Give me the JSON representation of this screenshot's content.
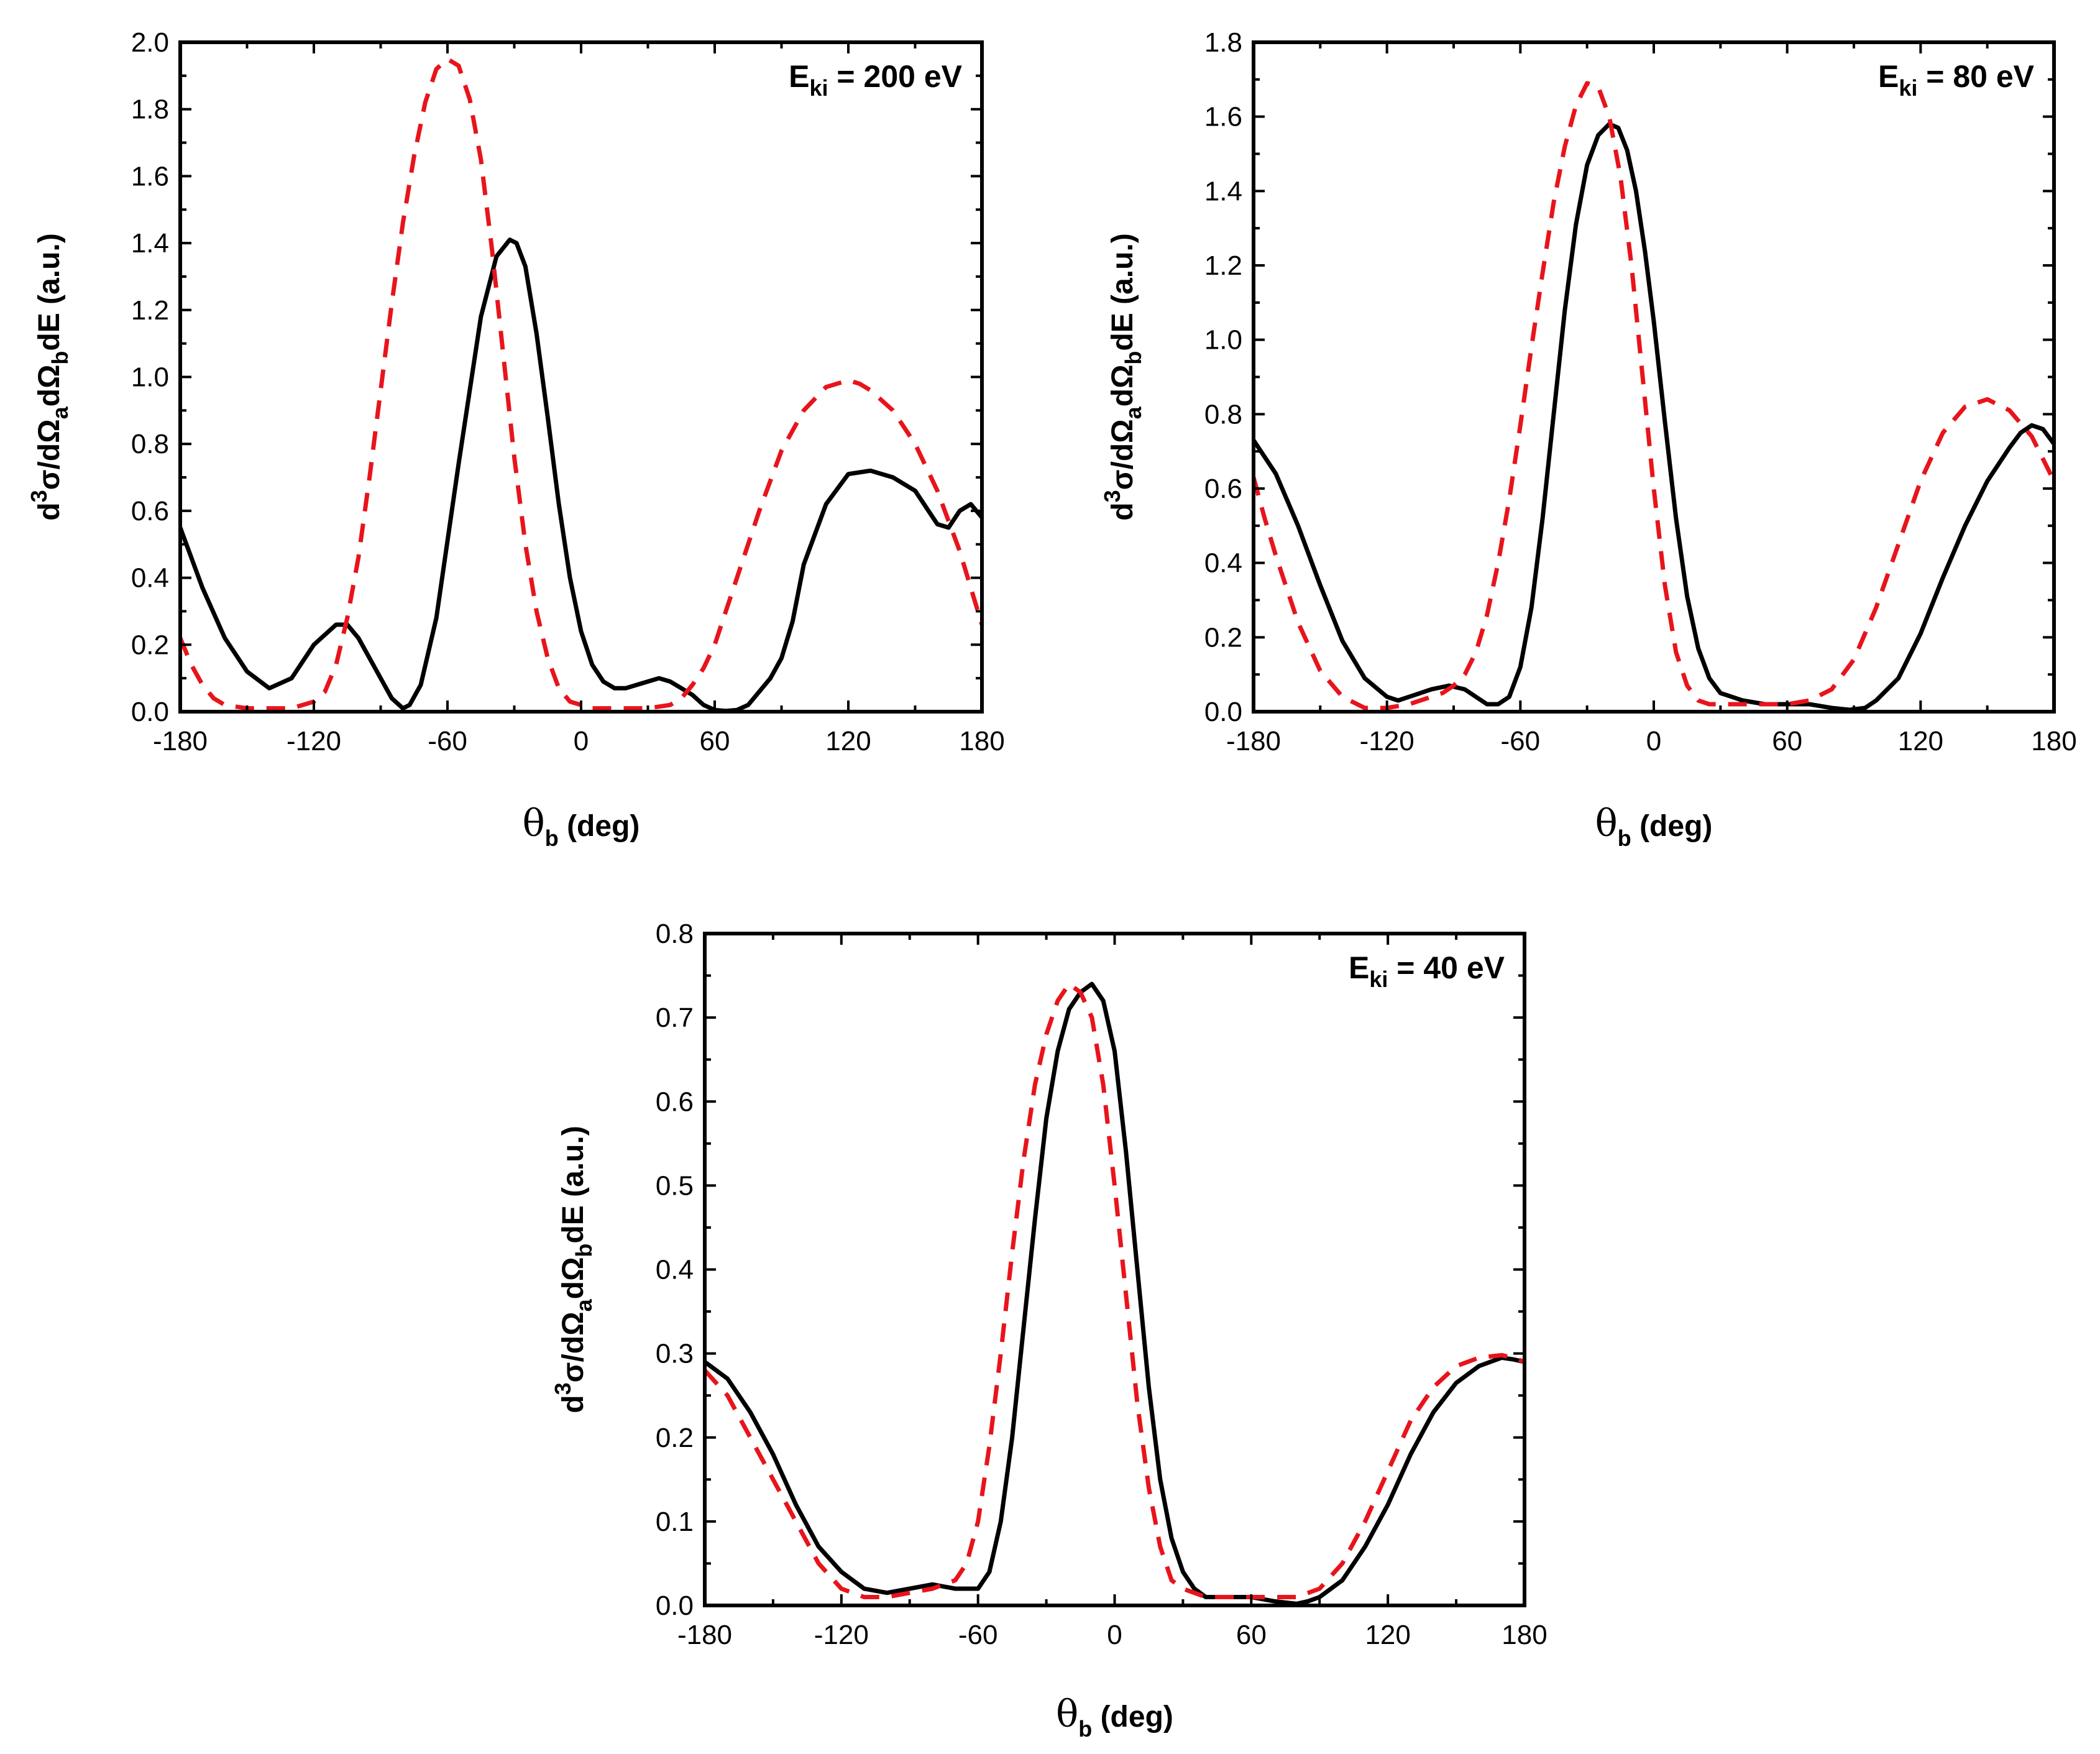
{
  "figure": {
    "colors": {
      "solid": "#000000",
      "dashed": "#e8141b",
      "axes": "#000000",
      "background": "#ffffff"
    }
  },
  "chart_data": [
    {
      "type": "line",
      "annotation": {
        "main": "E",
        "sub": "ki",
        "rest": " = 200 eV"
      },
      "xlabel": {
        "symbol": "θ",
        "sub": "b",
        "text": " (deg)"
      },
      "ylabel": {
        "p1": "d",
        "sup": "3",
        "p2": "σ/dΩ",
        "sub1": "a",
        "p3": "dΩ",
        "sub2": "b",
        "p4": "dE (a.u.)"
      },
      "xlim": [
        -180,
        180
      ],
      "ylim": [
        0,
        2.0
      ],
      "xticks": [
        -180,
        -120,
        -60,
        0,
        60,
        120,
        180
      ],
      "xtick_labels": [
        "-180",
        "-120",
        "-60",
        "0",
        "60",
        "120",
        "180"
      ],
      "yticks": [
        0,
        0.2,
        0.4,
        0.6,
        0.8,
        1.0,
        1.2,
        1.4,
        1.6,
        1.8,
        2.0
      ],
      "ytick_labels": [
        "0.0",
        "0.2",
        "0.4",
        "0.6",
        "0.8",
        "1.0",
        "1.2",
        "1.4",
        "1.6",
        "1.8",
        "2.0"
      ],
      "series": [
        {
          "name": "solid",
          "style": "solid",
          "x": [
            -180,
            -170,
            -160,
            -150,
            -140,
            -130,
            -120,
            -110,
            -105,
            -100,
            -90,
            -85,
            -80,
            -77,
            -72,
            -65,
            -55,
            -45,
            -38,
            -32,
            -29,
            -25,
            -20,
            -15,
            -10,
            -5,
            0,
            5,
            10,
            15,
            20,
            25,
            30,
            35,
            40,
            45,
            50,
            55,
            60,
            65,
            70,
            75,
            80,
            85,
            90,
            95,
            100,
            110,
            120,
            130,
            140,
            150,
            155,
            160,
            165,
            170,
            175,
            180
          ],
          "y": [
            0.55,
            0.37,
            0.22,
            0.12,
            0.07,
            0.1,
            0.2,
            0.26,
            0.26,
            0.22,
            0.1,
            0.04,
            0.01,
            0.02,
            0.08,
            0.28,
            0.74,
            1.18,
            1.36,
            1.41,
            1.4,
            1.33,
            1.13,
            0.88,
            0.62,
            0.4,
            0.24,
            0.14,
            0.09,
            0.07,
            0.07,
            0.08,
            0.09,
            0.1,
            0.09,
            0.07,
            0.05,
            0.02,
            0.005,
            0.002,
            0.005,
            0.02,
            0.06,
            0.1,
            0.16,
            0.27,
            0.44,
            0.62,
            0.71,
            0.72,
            0.7,
            0.66,
            0.61,
            0.56,
            0.55,
            0.6,
            0.62,
            0.58
          ]
        },
        {
          "name": "dashed",
          "style": "dashed",
          "x": [
            -180,
            -175,
            -170,
            -165,
            -160,
            -150,
            -140,
            -130,
            -120,
            -115,
            -110,
            -105,
            -100,
            -95,
            -90,
            -85,
            -80,
            -75,
            -70,
            -65,
            -60,
            -55,
            -50,
            -45,
            -40,
            -35,
            -30,
            -25,
            -20,
            -15,
            -10,
            -5,
            0,
            5,
            10,
            20,
            30,
            40,
            45,
            50,
            55,
            60,
            70,
            80,
            90,
            100,
            110,
            120,
            125,
            130,
            140,
            150,
            160,
            170,
            180
          ],
          "y": [
            0.22,
            0.14,
            0.08,
            0.04,
            0.02,
            0.01,
            0.01,
            0.01,
            0.03,
            0.06,
            0.14,
            0.28,
            0.46,
            0.7,
            0.96,
            1.22,
            1.46,
            1.66,
            1.82,
            1.92,
            1.95,
            1.93,
            1.83,
            1.65,
            1.38,
            1.07,
            0.76,
            0.5,
            0.3,
            0.16,
            0.07,
            0.03,
            0.02,
            0.01,
            0.01,
            0.01,
            0.01,
            0.02,
            0.04,
            0.08,
            0.13,
            0.2,
            0.4,
            0.6,
            0.78,
            0.9,
            0.97,
            0.99,
            0.98,
            0.96,
            0.9,
            0.8,
            0.66,
            0.48,
            0.26
          ]
        }
      ]
    },
    {
      "type": "line",
      "annotation": {
        "main": "E",
        "sub": "ki",
        "rest": " = 80 eV"
      },
      "xlabel": {
        "symbol": "θ",
        "sub": "b",
        "text": " (deg)"
      },
      "ylabel": {
        "p1": "d",
        "sup": "3",
        "p2": "σ/dΩ",
        "sub1": "a",
        "p3": "dΩ",
        "sub2": "b",
        "p4": "dE (a.u.)"
      },
      "xlim": [
        -180,
        180
      ],
      "ylim": [
        0,
        1.8
      ],
      "xticks": [
        -180,
        -120,
        -60,
        0,
        60,
        120,
        180
      ],
      "xtick_labels": [
        "-180",
        "-120",
        "-60",
        "0",
        "60",
        "120",
        "180"
      ],
      "yticks": [
        0,
        0.2,
        0.4,
        0.6,
        0.8,
        1.0,
        1.2,
        1.4,
        1.6,
        1.8
      ],
      "ytick_labels": [
        "0.0",
        "0.2",
        "0.4",
        "0.6",
        "0.8",
        "1.0",
        "1.2",
        "1.4",
        "1.6",
        "1.8"
      ],
      "series": [
        {
          "name": "solid",
          "style": "solid",
          "x": [
            -180,
            -170,
            -160,
            -150,
            -140,
            -130,
            -120,
            -115,
            -110,
            -100,
            -92,
            -85,
            -80,
            -75,
            -70,
            -65,
            -60,
            -55,
            -50,
            -45,
            -40,
            -35,
            -30,
            -25,
            -20,
            -16,
            -12,
            -8,
            -4,
            0,
            5,
            10,
            15,
            20,
            25,
            30,
            40,
            50,
            60,
            70,
            80,
            88,
            95,
            100,
            110,
            120,
            130,
            140,
            150,
            160,
            165,
            170,
            175,
            180
          ],
          "y": [
            0.73,
            0.64,
            0.5,
            0.34,
            0.19,
            0.09,
            0.04,
            0.03,
            0.04,
            0.06,
            0.07,
            0.06,
            0.04,
            0.02,
            0.02,
            0.04,
            0.12,
            0.28,
            0.52,
            0.8,
            1.08,
            1.31,
            1.47,
            1.55,
            1.58,
            1.57,
            1.51,
            1.4,
            1.24,
            1.05,
            0.78,
            0.52,
            0.31,
            0.17,
            0.09,
            0.05,
            0.03,
            0.02,
            0.02,
            0.02,
            0.01,
            0.005,
            0.01,
            0.03,
            0.09,
            0.21,
            0.36,
            0.5,
            0.62,
            0.71,
            0.75,
            0.77,
            0.76,
            0.72
          ]
        },
        {
          "name": "dashed",
          "style": "dashed",
          "x": [
            -180,
            -175,
            -170,
            -160,
            -150,
            -140,
            -130,
            -120,
            -110,
            -100,
            -95,
            -90,
            -85,
            -80,
            -75,
            -70,
            -65,
            -60,
            -55,
            -50,
            -45,
            -40,
            -35,
            -30,
            -25,
            -20,
            -15,
            -10,
            -5,
            0,
            5,
            10,
            15,
            20,
            25,
            30,
            40,
            50,
            60,
            70,
            80,
            90,
            100,
            110,
            120,
            130,
            140,
            150,
            160,
            170,
            180
          ],
          "y": [
            0.63,
            0.52,
            0.42,
            0.24,
            0.11,
            0.04,
            0.01,
            0.01,
            0.02,
            0.04,
            0.05,
            0.07,
            0.1,
            0.16,
            0.26,
            0.4,
            0.57,
            0.77,
            0.98,
            1.18,
            1.37,
            1.52,
            1.63,
            1.69,
            1.68,
            1.6,
            1.44,
            1.2,
            0.9,
            0.6,
            0.34,
            0.16,
            0.07,
            0.03,
            0.02,
            0.02,
            0.02,
            0.02,
            0.02,
            0.03,
            0.06,
            0.14,
            0.28,
            0.45,
            0.62,
            0.75,
            0.82,
            0.84,
            0.81,
            0.74,
            0.62
          ]
        }
      ]
    },
    {
      "type": "line",
      "annotation": {
        "main": "E",
        "sub": "ki",
        "rest": " = 40 eV"
      },
      "xlabel": {
        "symbol": "θ",
        "sub": "b",
        "text": " (deg)"
      },
      "ylabel": {
        "p1": "d",
        "sup": "3",
        "p2": "σ/dΩ",
        "sub1": "a",
        "p3": "dΩ",
        "sub2": "b",
        "p4": "dE (a.u.)"
      },
      "xlim": [
        -180,
        180
      ],
      "ylim": [
        0,
        0.8
      ],
      "xticks": [
        -180,
        -120,
        -60,
        0,
        60,
        120,
        180
      ],
      "xtick_labels": [
        "-180",
        "-120",
        "-60",
        "0",
        "60",
        "120",
        "180"
      ],
      "yticks": [
        0,
        0.1,
        0.2,
        0.3,
        0.4,
        0.5,
        0.6,
        0.7,
        0.8
      ],
      "ytick_labels": [
        "0.0",
        "0.1",
        "0.2",
        "0.3",
        "0.4",
        "0.5",
        "0.6",
        "0.7",
        "0.8"
      ],
      "series": [
        {
          "name": "solid",
          "style": "solid",
          "x": [
            -180,
            -170,
            -160,
            -150,
            -140,
            -130,
            -120,
            -110,
            -100,
            -90,
            -80,
            -70,
            -60,
            -55,
            -50,
            -45,
            -40,
            -35,
            -30,
            -25,
            -20,
            -15,
            -10,
            -5,
            0,
            5,
            10,
            15,
            20,
            25,
            30,
            35,
            40,
            50,
            60,
            70,
            80,
            85,
            90,
            100,
            110,
            120,
            130,
            140,
            150,
            160,
            170,
            175,
            180
          ],
          "y": [
            0.29,
            0.27,
            0.23,
            0.18,
            0.12,
            0.07,
            0.04,
            0.02,
            0.015,
            0.02,
            0.025,
            0.02,
            0.02,
            0.04,
            0.1,
            0.2,
            0.33,
            0.46,
            0.58,
            0.66,
            0.71,
            0.73,
            0.74,
            0.72,
            0.66,
            0.54,
            0.4,
            0.26,
            0.15,
            0.08,
            0.04,
            0.02,
            0.01,
            0.01,
            0.01,
            0.005,
            0.002,
            0.005,
            0.01,
            0.03,
            0.07,
            0.12,
            0.18,
            0.23,
            0.265,
            0.285,
            0.295,
            0.293,
            0.29
          ]
        },
        {
          "name": "dashed",
          "style": "dashed",
          "x": [
            -180,
            -170,
            -160,
            -150,
            -140,
            -130,
            -120,
            -110,
            -100,
            -90,
            -80,
            -70,
            -65,
            -60,
            -55,
            -50,
            -45,
            -40,
            -35,
            -30,
            -25,
            -20,
            -15,
            -10,
            -5,
            0,
            5,
            10,
            15,
            20,
            25,
            30,
            35,
            40,
            50,
            60,
            70,
            80,
            90,
            100,
            110,
            120,
            130,
            140,
            150,
            160,
            170,
            175,
            180
          ],
          "y": [
            0.28,
            0.25,
            0.2,
            0.15,
            0.1,
            0.05,
            0.02,
            0.01,
            0.01,
            0.015,
            0.02,
            0.03,
            0.05,
            0.1,
            0.19,
            0.3,
            0.42,
            0.53,
            0.62,
            0.68,
            0.72,
            0.74,
            0.73,
            0.7,
            0.62,
            0.5,
            0.37,
            0.24,
            0.14,
            0.07,
            0.03,
            0.02,
            0.015,
            0.01,
            0.01,
            0.01,
            0.01,
            0.01,
            0.02,
            0.05,
            0.1,
            0.16,
            0.22,
            0.26,
            0.285,
            0.295,
            0.298,
            0.295,
            0.29
          ]
        }
      ]
    }
  ]
}
